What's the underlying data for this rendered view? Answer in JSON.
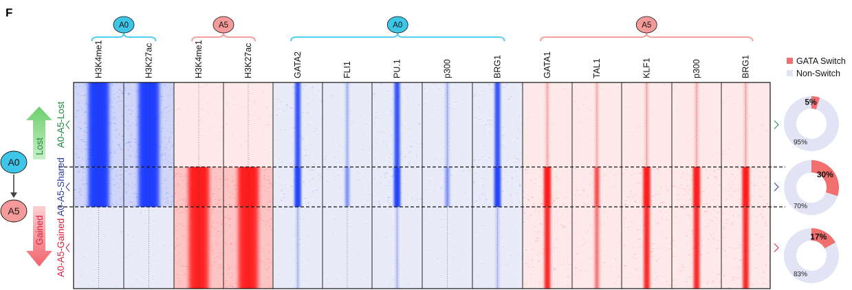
{
  "panel_label": "F",
  "groups": [
    {
      "label": "A0",
      "kind": "A0"
    },
    {
      "label": "A5",
      "kind": "A5"
    },
    {
      "label": "A0",
      "kind": "A0"
    },
    {
      "label": "A5",
      "kind": "A5"
    }
  ],
  "columns": [
    {
      "label": "H3K4me1",
      "mark": "blue_dense"
    },
    {
      "label": "H3K27ac",
      "mark": "blue_dense"
    },
    {
      "label": "H3K4me1",
      "mark": "red_dense"
    },
    {
      "label": "H3K27ac",
      "mark": "red_dense"
    },
    {
      "label": "GATA2",
      "mark": "blue_tf"
    },
    {
      "label": "FLI1",
      "mark": "blue_weak"
    },
    {
      "label": "PU.1",
      "mark": "blue_tf"
    },
    {
      "label": "p300",
      "mark": "blue_weak"
    },
    {
      "label": "BRG1",
      "mark": "blue_tf"
    },
    {
      "label": "GATA1",
      "mark": "red_tf"
    },
    {
      "label": "TAL1",
      "mark": "red_weak"
    },
    {
      "label": "KLF1",
      "mark": "red_tf"
    },
    {
      "label": "p300",
      "mark": "red_tf"
    },
    {
      "label": "BRG1",
      "mark": "red_tf"
    }
  ],
  "row_groups": [
    {
      "label": "A0-A5-Lost",
      "color": "#1a8a3a"
    },
    {
      "label": "A0-A5-Shared",
      "color": "#2a3aa0"
    },
    {
      "label": "A0-A5-Gained",
      "color": "#e0203c"
    }
  ],
  "transition": {
    "from": "A0",
    "to": "A5",
    "lost_label": "Lost",
    "gained_label": "Gained"
  },
  "legend": [
    {
      "label": "GATA Switch",
      "color": "#f07070"
    },
    {
      "label": "Non-Switch",
      "color": "#e2e3f5"
    }
  ],
  "donuts": [
    {
      "switch_pct": 5,
      "switch_label": "5%",
      "nonswitch_label": "95%"
    },
    {
      "switch_pct": 30,
      "switch_label": "30%",
      "nonswitch_label": "70%"
    },
    {
      "switch_pct": 17,
      "switch_label": "17%",
      "nonswitch_label": "83%"
    }
  ],
  "colors": {
    "a0_circle": "#3dc6e8",
    "a5_circle": "#f59a9a",
    "a0_brace": "#55cdee",
    "a5_brace": "#f4a0a0",
    "heat_blue": "#1a3cff",
    "heat_red": "#ff1a1a",
    "heat_blue_bg": "#e9ecf8",
    "heat_red_bg": "#fde9e9",
    "arrow_green": "#7ed67e",
    "arrow_red": "#f47a80"
  }
}
